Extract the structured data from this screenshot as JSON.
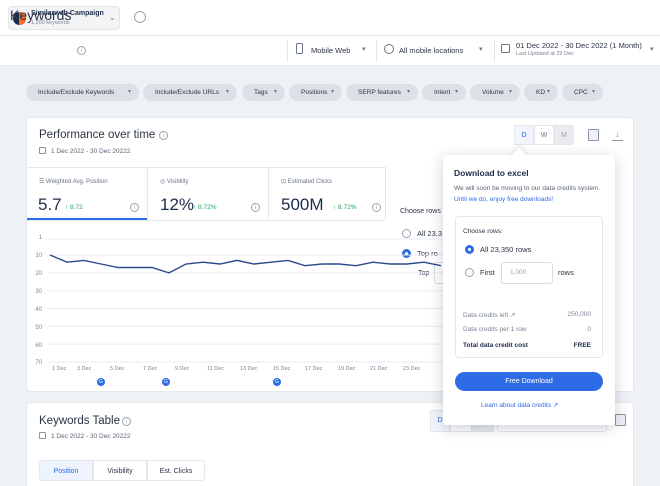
{
  "campaign": {
    "name": "Similarweb Campaign",
    "subtitle": "1,200 keywords"
  },
  "header": {
    "title": "Keywords",
    "device": "Mobile Web",
    "location": "All mobile locations",
    "date_range": "01 Dec 2022 - 30 Dec 2022 (1 Month)",
    "last_updated": "Last Updated at 29 Dec"
  },
  "filters": [
    "Include/Exclude Keywords",
    "Include/Exclude URLs",
    "Tags",
    "Positions",
    "SERP features",
    "Intent",
    "Volume",
    "KD",
    "CPC"
  ],
  "performance": {
    "title": "Performance over time",
    "date_range": "1 Dec 2022 - 30 Dec 20222",
    "granularity": [
      "D",
      "W",
      "M"
    ],
    "metrics": [
      {
        "label": "Weighted Avg. Position",
        "value": "5.7",
        "delta": "↑ 8.72"
      },
      {
        "label": "Visibility",
        "value": "12%",
        "delta": "↑ 8.72%"
      },
      {
        "label": "Estimated Clicks",
        "value": "500M",
        "delta": "↑ 8.72%"
      }
    ],
    "behind_popup": {
      "choose_rows": "Choose rows",
      "all": "All 23,3",
      "top": "Top ro",
      "top_label": "Top"
    }
  },
  "chart_data": {
    "type": "line",
    "y_ticks": [
      "1",
      "10",
      "20",
      "30",
      "40",
      "50",
      "60",
      "70"
    ],
    "ylim": [
      1,
      70
    ],
    "y_inverted": true,
    "x_ticks": [
      "1 Dec",
      "3 Dec",
      "5 Dec",
      "7 Dec",
      "9 Dec",
      "11 Dec",
      "13 Dec",
      "15 Dec",
      "17 Dec",
      "19 Dec",
      "21 Dec",
      "23 Dec"
    ],
    "series": [
      {
        "color": "#2a4a8a",
        "x": [
          1,
          2,
          3,
          4,
          5,
          6,
          7,
          8,
          9,
          10,
          11,
          12,
          13,
          14,
          15,
          16,
          17,
          18,
          19,
          20,
          21,
          22,
          23,
          24
        ],
        "values": [
          10,
          14,
          13,
          15,
          17,
          17,
          17,
          20,
          15,
          14,
          15,
          13,
          15,
          14,
          13,
          16,
          15,
          15,
          16,
          14,
          15,
          15,
          14,
          16
        ]
      }
    ],
    "event_markers": [
      "3 Dec",
      "8 Dec",
      "15 Dec"
    ],
    "marker_label": "G"
  },
  "download_popup": {
    "title": "Download to excel",
    "description": "We will soon be moving to our data credits system.",
    "promo_link": "Until we do, enjoy free downloads!",
    "choose_rows_label": "Choose rows:",
    "option_all": "All 23,350 rows",
    "option_first": "First",
    "first_placeholder": "1,000",
    "rows_suffix": "rows",
    "credits_left_label": "Data credits left",
    "credits_left_value": "250,000",
    "credits_per_row_label": "Data credits per 1 row",
    "credits_per_row_value": "0",
    "total_label": "Total data credit cost",
    "total_value": "FREE",
    "button": "Free Download",
    "learn_link": "Learn about data credits"
  },
  "keywords_table": {
    "title": "Keywords Table",
    "date_range": "1 Dec 2022 - 30 Dec 20222",
    "tabs": [
      "Position",
      "Visibility",
      "Est. Clicks"
    ],
    "d_label": "D"
  },
  "colors": {
    "accent": "#2e6be6",
    "positive": "#1ea65f",
    "line": "#2a4a8a"
  }
}
